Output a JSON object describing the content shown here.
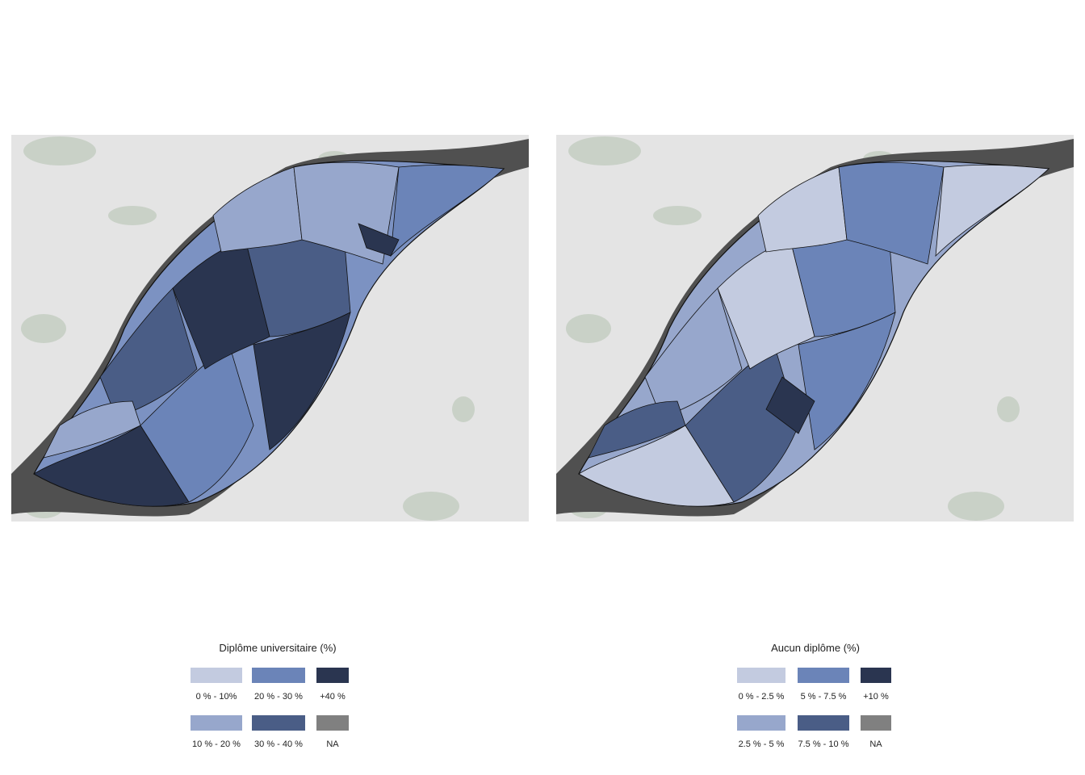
{
  "maps": [
    {
      "legend_title": "Diplôme universitaire (%)",
      "legend": [
        {
          "label": "0 % - 10%",
          "color": "#c3cbe0"
        },
        {
          "label": "20 % - 30 %",
          "color": "#6b84b8"
        },
        {
          "label": "+40 %",
          "color": "#2a3550"
        },
        {
          "label": "10 % - 20 %",
          "color": "#97a7cc"
        },
        {
          "label": "30 % - 40 %",
          "color": "#4a5d86"
        },
        {
          "label": "NA",
          "color": "#808080"
        }
      ]
    },
    {
      "legend_title": "Aucun diplôme (%)",
      "legend": [
        {
          "label": "0 % - 2.5 %",
          "color": "#c3cbe0"
        },
        {
          "label": "5 % - 7.5 %",
          "color": "#6b84b8"
        },
        {
          "label": "+10 %",
          "color": "#2a3550"
        },
        {
          "label": "2.5 % - 5 %",
          "color": "#97a7cc"
        },
        {
          "label": "7.5 % - 10 %",
          "color": "#4a5d86"
        },
        {
          "label": "NA",
          "color": "#808080"
        }
      ]
    }
  ],
  "colors": {
    "land": "#e4e4e4",
    "water": "#505050",
    "park": "#c9d1c7",
    "borders": "#111111"
  }
}
